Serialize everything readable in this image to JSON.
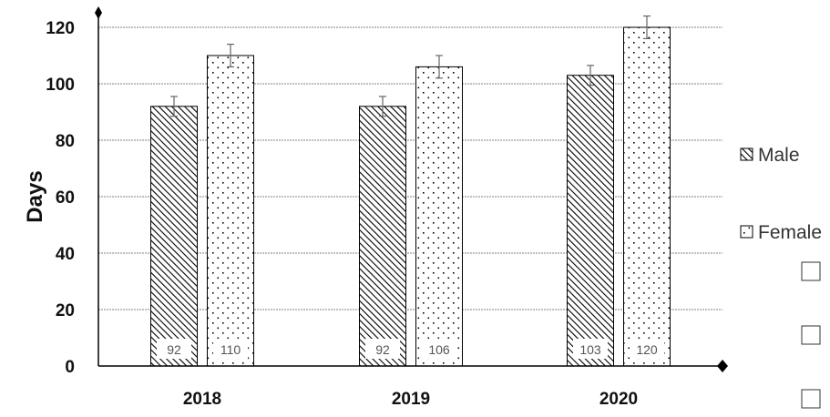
{
  "chart_data": {
    "type": "bar",
    "title": "",
    "xlabel": "",
    "ylabel": "Days",
    "categories": [
      "2018",
      "2019",
      "2020"
    ],
    "series": [
      {
        "name": "Male",
        "values": [
          92,
          92,
          103
        ],
        "errors": [
          3.5,
          3.5,
          3.5
        ],
        "pattern": "diagonal-hatch"
      },
      {
        "name": "Female",
        "values": [
          110,
          106,
          120
        ],
        "errors": [
          4,
          4,
          4
        ],
        "pattern": "dots"
      }
    ],
    "ylim": [
      0,
      120
    ],
    "yticks": [
      "0",
      "20",
      "40",
      "60",
      "80",
      "100",
      "120"
    ],
    "grid": true,
    "legend": "right",
    "data_labels": true,
    "colors": {
      "axis": "#000000",
      "grid": "#808080",
      "bar_stroke": "#000000",
      "fill_pattern": "#000000",
      "background": "#ffffff"
    }
  }
}
